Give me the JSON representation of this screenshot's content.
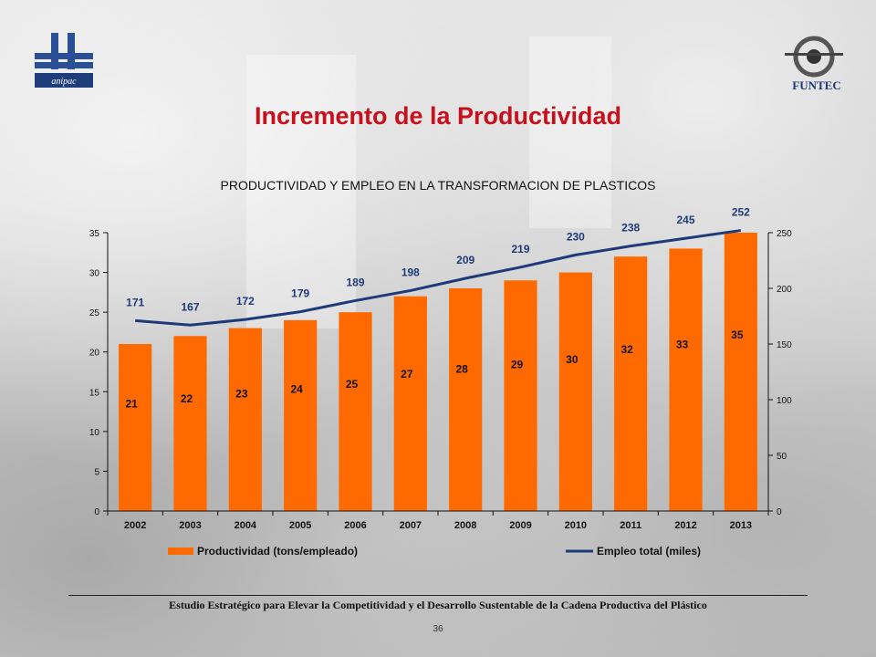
{
  "slide": {
    "title": "Incremento de la Productividad",
    "footer": "Estudio Estratégico para Elevar la Competitividad y el Desarrollo Sustentable de la Cadena Productiva del Plástico",
    "page_number": "36",
    "logo_left_text": "anipac",
    "logo_right_text": "FUNTEC"
  },
  "colors": {
    "title": "#c8101d",
    "bar": "#ff6a00",
    "line": "#1e3a78",
    "line_label": "#1e3a78"
  },
  "chart_data": {
    "type": "bar",
    "title": "PRODUCTIVIDAD Y EMPLEO EN LA TRANSFORMACION DE PLASTICOS",
    "categories": [
      "2002",
      "2003",
      "2004",
      "2005",
      "2006",
      "2007",
      "2008",
      "2009",
      "2010",
      "2011",
      "2012",
      "2013"
    ],
    "series": [
      {
        "name": "Productividad (tons/empleado)",
        "type": "bar",
        "axis": "left",
        "values": [
          21,
          22,
          23,
          24,
          25,
          27,
          28,
          29,
          30,
          32,
          33,
          35
        ]
      },
      {
        "name": "Empleo total (miles)",
        "type": "line",
        "axis": "right",
        "values": [
          171,
          167,
          172,
          179,
          189,
          198,
          209,
          219,
          230,
          238,
          245,
          252
        ]
      }
    ],
    "y_left": {
      "min": 0,
      "max": 35,
      "ticks": [
        0,
        5,
        10,
        15,
        20,
        25,
        30,
        35
      ]
    },
    "y_right": {
      "min": 0,
      "max": 250,
      "ticks": [
        0,
        50,
        100,
        150,
        200,
        250
      ]
    },
    "legend_position": "bottom",
    "grid": false
  }
}
